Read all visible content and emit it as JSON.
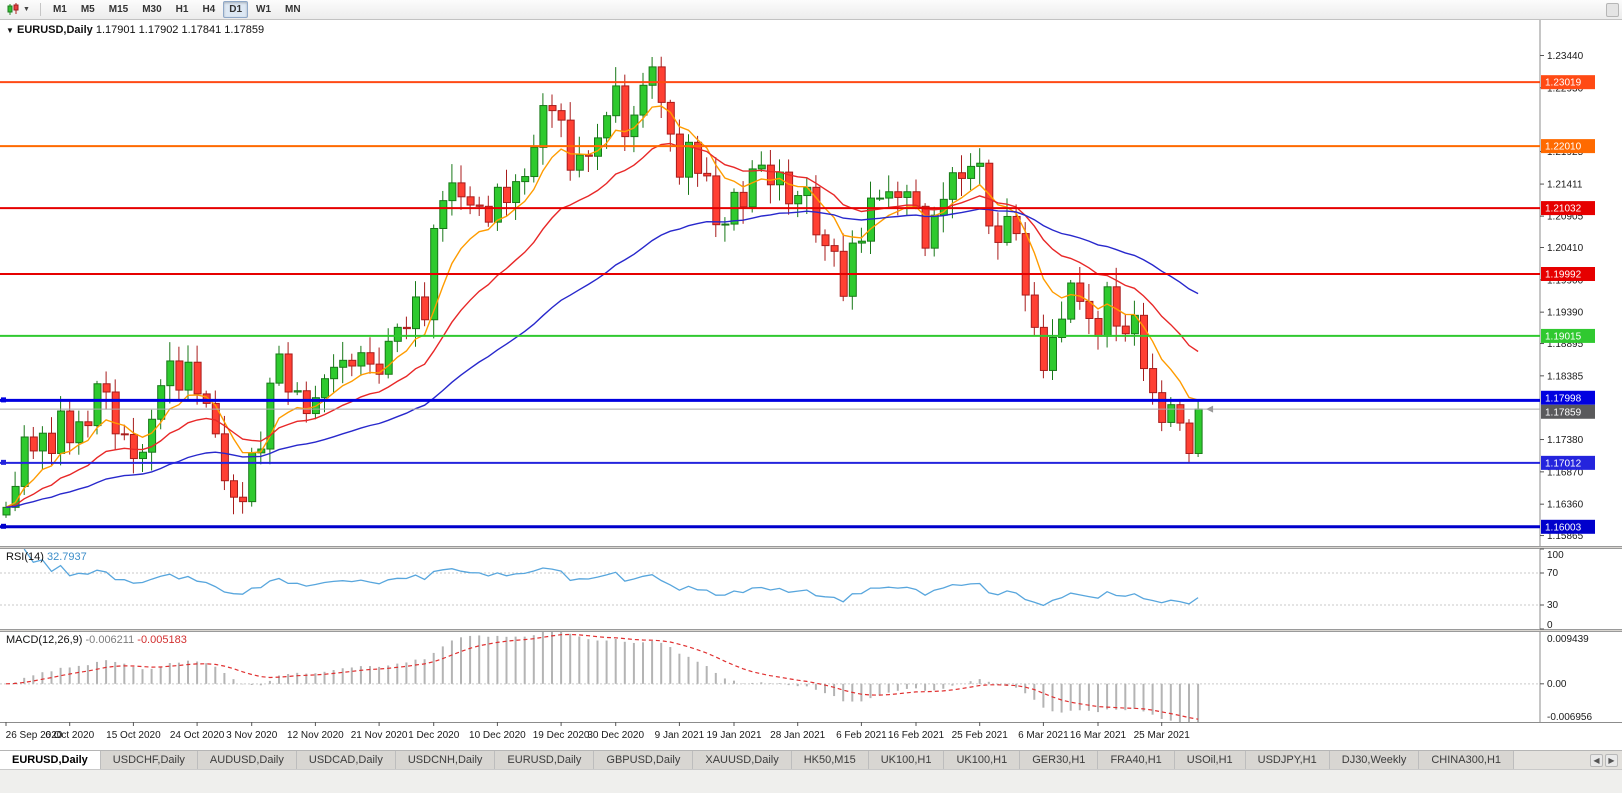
{
  "toolbar": {
    "timeframes": [
      "M1",
      "M5",
      "M15",
      "M30",
      "H1",
      "H4",
      "D1",
      "W1",
      "MN"
    ],
    "active_timeframe": "D1"
  },
  "chart": {
    "collapse_arrow": "▼",
    "title_symbol": "EURUSD,Daily",
    "title_ohlc": "1.17901 1.17902 1.17841 1.17859"
  },
  "indicators": {
    "rsi": {
      "label": "RSI(14)",
      "value": "32.7937",
      "levels": [
        "100",
        "70",
        "30",
        "0"
      ],
      "color": "#58a6dd"
    },
    "macd": {
      "label": "MACD(12,26,9)",
      "value_main": "-0.006211",
      "value_signal": "-0.005183",
      "axis": [
        "0.009439",
        "0.00",
        "-0.006956"
      ],
      "histogram_color": "#b4b4b4",
      "signal_color": "#e03030"
    }
  },
  "price_axis": {
    "ticks": [
      "1.23440",
      "1.22930",
      "1.21925",
      "1.21411",
      "1.20905",
      "1.20410",
      "1.19900",
      "1.19390",
      "1.18895",
      "1.18385",
      "1.17380",
      "1.16870",
      "1.16360",
      "1.15865"
    ]
  },
  "levels": [
    {
      "label": "1.23019",
      "price": 1.23019,
      "color": "#ff4a14",
      "width": 2
    },
    {
      "label": "1.22010",
      "price": 1.2201,
      "color": "#ff6a00",
      "width": 2
    },
    {
      "label": "1.21032",
      "price": 1.21032,
      "color": "#e60000",
      "width": 2
    },
    {
      "label": "1.19992",
      "price": 1.19992,
      "color": "#e60000",
      "width": 2
    },
    {
      "label": "1.19015",
      "price": 1.19015,
      "color": "#30c930",
      "width": 2
    },
    {
      "label": "1.17998",
      "price": 1.17998,
      "color": "#0000e0",
      "width": 3,
      "handle": true
    },
    {
      "label": "1.17012",
      "price": 1.17012,
      "color": "#2424dd",
      "width": 2,
      "handle": true
    },
    {
      "label": "1.16003",
      "price": 1.16003,
      "color": "#0000cc",
      "width": 3,
      "handle": true
    }
  ],
  "current_price": {
    "label": "1.17859",
    "price": 1.17859,
    "bg": "#5a5a5c"
  },
  "view": {
    "price_max": 1.24,
    "price_min": 1.157,
    "macd_max": 0.009439,
    "macd_min": -0.006956
  },
  "colors": {
    "candle_up": "#2eca2e",
    "candle_up_border": "#187818",
    "candle_down": "#ff4033",
    "candle_down_border": "#a81b1b",
    "background": "#ffffff"
  },
  "chart_data": {
    "type": "candlestick",
    "symbol": "EURUSD",
    "timeframe": "Daily",
    "closes": [
      1.1631,
      1.1664,
      1.1742,
      1.172,
      1.1748,
      1.1716,
      1.1783,
      1.1733,
      1.1766,
      1.176,
      1.1826,
      1.1813,
      1.1747,
      1.1746,
      1.1708,
      1.1718,
      1.177,
      1.1823,
      1.1862,
      1.1816,
      1.186,
      1.181,
      1.1795,
      1.1747,
      1.1673,
      1.1647,
      1.164,
      1.1717,
      1.1723,
      1.1827,
      1.1873,
      1.1813,
      1.1815,
      1.1779,
      1.1804,
      1.1834,
      1.1852,
      1.1863,
      1.1854,
      1.1875,
      1.1857,
      1.1841,
      1.1893,
      1.1915,
      1.1913,
      1.1963,
      1.1927,
      1.2071,
      1.2115,
      1.2143,
      1.2121,
      1.2108,
      1.2106,
      1.2081,
      1.2136,
      1.2112,
      1.2145,
      1.2153,
      1.2199,
      1.2265,
      1.2257,
      1.2242,
      1.2163,
      1.2187,
      1.2185,
      1.2214,
      1.2249,
      1.2296,
      1.2216,
      1.225,
      1.2297,
      1.2326,
      1.227,
      1.222,
      1.2152,
      1.2207,
      1.2158,
      1.2154,
      1.2077,
      1.2078,
      1.2128,
      1.2105,
      1.2165,
      1.2171,
      1.214,
      1.216,
      1.211,
      1.2123,
      1.2136,
      1.2061,
      1.2044,
      1.2035,
      1.1964,
      1.2048,
      1.2051,
      1.2119,
      1.2119,
      1.2129,
      1.212,
      1.2129,
      1.2106,
      1.204,
      1.2092,
      1.2117,
      1.2159,
      1.215,
      1.2169,
      1.2174,
      1.2075,
      1.2049,
      1.209,
      1.2063,
      1.1966,
      1.1915,
      1.1847,
      1.1899,
      1.1928,
      1.1985,
      1.1956,
      1.1929,
      1.1901,
      1.1979,
      1.1917,
      1.1905,
      1.1934,
      1.185,
      1.1812,
      1.1765,
      1.1793,
      1.1764,
      1.1716,
      1.1786
    ],
    "x_labels": [
      {
        "i": 0,
        "t": "26 Sep 2020"
      },
      {
        "i": 7,
        "t": "6 Oct 2020"
      },
      {
        "i": 14,
        "t": "15 Oct 2020"
      },
      {
        "i": 21,
        "t": "24 Oct 2020"
      },
      {
        "i": 27,
        "t": "3 Nov 2020"
      },
      {
        "i": 34,
        "t": "12 Nov 2020"
      },
      {
        "i": 41,
        "t": "21 Nov 2020"
      },
      {
        "i": 47,
        "t": "1 Dec 2020"
      },
      {
        "i": 54,
        "t": "10 Dec 2020"
      },
      {
        "i": 61,
        "t": "19 Dec 2020"
      },
      {
        "i": 67,
        "t": "30 Dec 2020"
      },
      {
        "i": 74,
        "t": "9 Jan 2021"
      },
      {
        "i": 80,
        "t": "19 Jan 2021"
      },
      {
        "i": 87,
        "t": "28 Jan 2021"
      },
      {
        "i": 94,
        "t": "6 Feb 2021"
      },
      {
        "i": 100,
        "t": "16 Feb 2021"
      },
      {
        "i": 107,
        "t": "25 Feb 2021"
      },
      {
        "i": 114,
        "t": "6 Mar 2021"
      },
      {
        "i": 120,
        "t": "16 Mar 2021"
      },
      {
        "i": 127,
        "t": "25 Mar 2021"
      }
    ],
    "moving_averages": [
      {
        "type": "ema",
        "period": 8,
        "color": "#ff9c00"
      },
      {
        "type": "ema",
        "period": 20,
        "color": "#e82828"
      },
      {
        "type": "ema",
        "period": 50,
        "color": "#2828cc"
      }
    ]
  },
  "tabs": {
    "items": [
      "EURUSD,Daily",
      "USDCHF,Daily",
      "AUDUSD,Daily",
      "USDCAD,Daily",
      "USDCNH,Daily",
      "EURUSD,Daily",
      "GBPUSD,Daily",
      "XAUUSD,Daily",
      "HK50,M15",
      "UK100,H1",
      "UK100,H1",
      "GER30,H1",
      "FRA40,H1",
      "USOil,H1",
      "USDJPY,H1",
      "DJ30,Weekly",
      "CHINA300,H1"
    ],
    "active_index": 0
  }
}
